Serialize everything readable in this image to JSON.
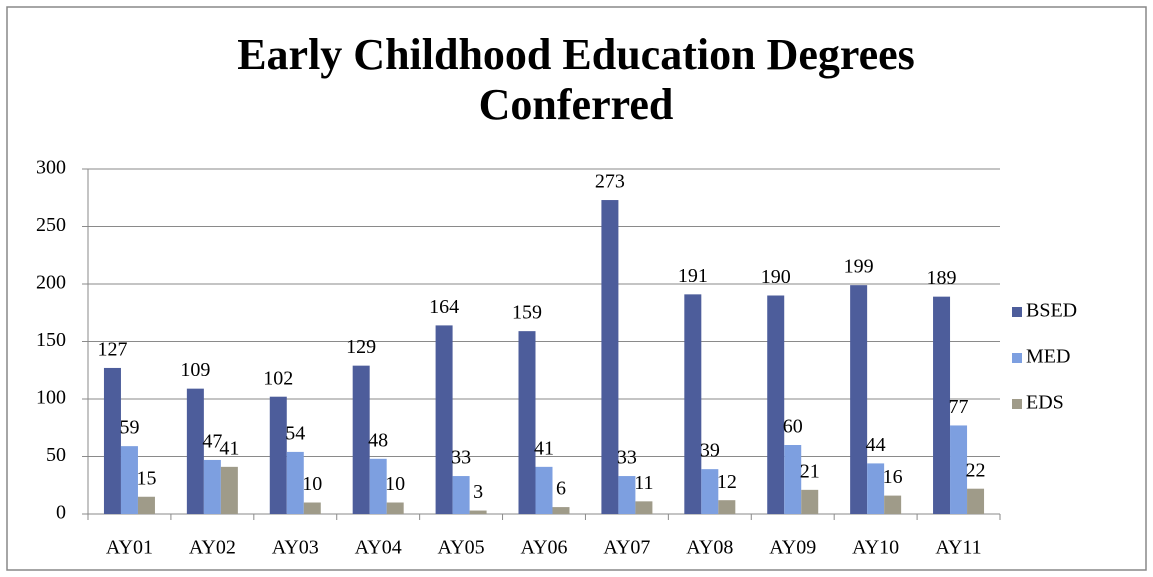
{
  "chart_data": {
    "type": "bar",
    "title": "Early Childhood Education Degrees Conferred",
    "categories": [
      "AY01",
      "AY02",
      "AY03",
      "AY04",
      "AY05",
      "AY06",
      "AY07",
      "AY08",
      "AY09",
      "AY10",
      "AY11"
    ],
    "series": [
      {
        "name": "BSED",
        "color": "#4d5d9b",
        "values": [
          127,
          109,
          102,
          129,
          164,
          159,
          273,
          191,
          190,
          199,
          189
        ]
      },
      {
        "name": "MED",
        "color": "#7d9fe0",
        "values": [
          59,
          47,
          54,
          48,
          33,
          41,
          33,
          39,
          60,
          44,
          77
        ]
      },
      {
        "name": "EDS",
        "color": "#9f9b89",
        "values": [
          15,
          41,
          10,
          10,
          3,
          6,
          11,
          12,
          21,
          16,
          22
        ]
      }
    ],
    "ylim": [
      0,
      300
    ],
    "yticks": [
      0,
      50,
      100,
      150,
      200,
      250,
      300
    ],
    "grid": true,
    "legend": "right"
  }
}
